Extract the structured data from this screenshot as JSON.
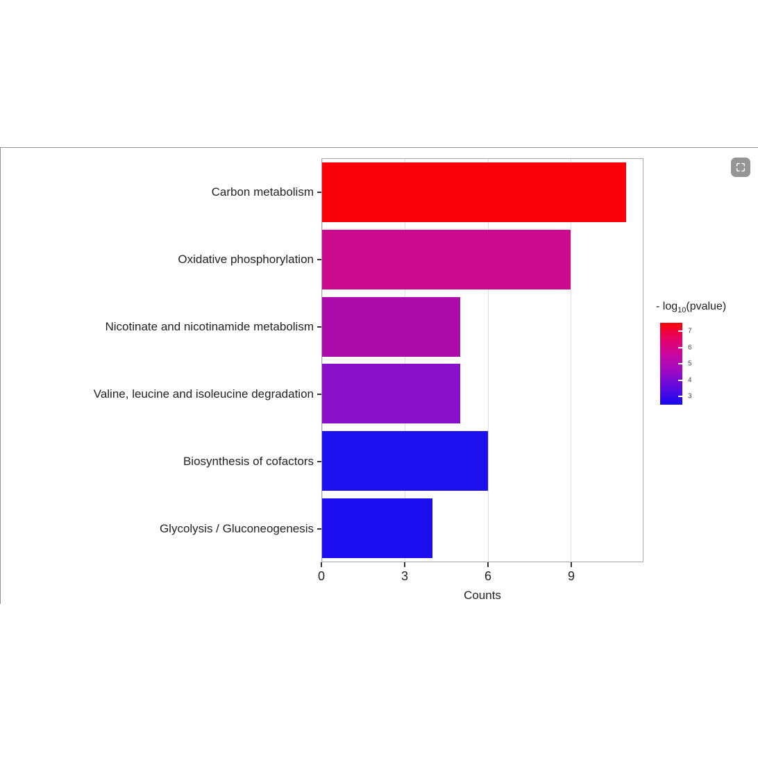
{
  "page": {
    "expand_icon": "screenshot-expand"
  },
  "chart_data": {
    "type": "bar",
    "orientation": "horizontal",
    "title": "",
    "xlabel": "Counts",
    "ylabel": "",
    "xlim": [
      0,
      11.6
    ],
    "xticks": [
      0,
      3,
      6,
      9
    ],
    "grid": true,
    "legend_position": "right",
    "categories": [
      "Carbon metabolism",
      "Oxidative phosphorylation",
      "Nicotinate and nicotinamide metabolism",
      "Valine, leucine and isoleucine degradation",
      "Biosynthesis of cofactors",
      "Glycolysis / Gluconeogenesis"
    ],
    "values": [
      11,
      9,
      5,
      5,
      6,
      4
    ],
    "bar_colors": [
      "#fa0009",
      "#cc0a8e",
      "#ad0caa",
      "#8a0fc9",
      "#1c10ee",
      "#1b0df0"
    ],
    "color_variable": "- log10(pvalue)",
    "legend": {
      "title_prefix": "- log",
      "title_sub": "10",
      "title_suffix": "(pvalue)",
      "labels": [
        7,
        6,
        5,
        4,
        3
      ],
      "domain_top": 7.5,
      "domain_bottom": 2.5,
      "gradient_stops": [
        {
          "color": "#fb0008",
          "pos": 0
        },
        {
          "color": "#e40368",
          "pos": 20
        },
        {
          "color": "#c708a4",
          "pos": 40
        },
        {
          "color": "#9b0bc4",
          "pos": 60
        },
        {
          "color": "#5a0ae0",
          "pos": 80
        },
        {
          "color": "#1607f2",
          "pos": 100
        }
      ]
    }
  }
}
